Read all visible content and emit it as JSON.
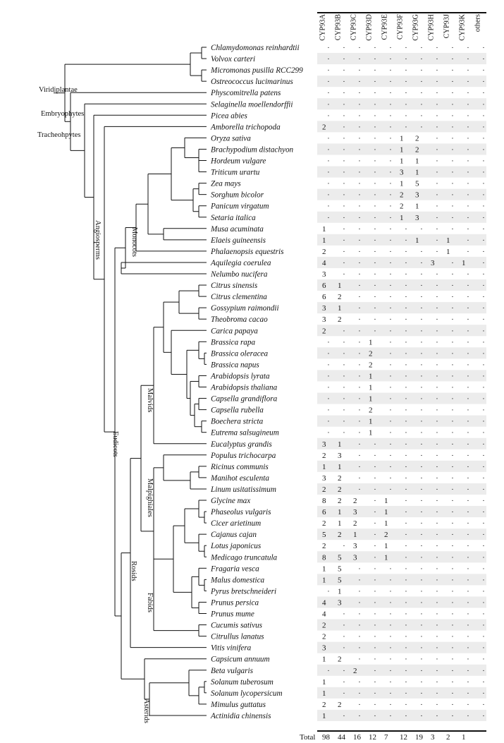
{
  "columns": [
    "CYP93A",
    "CYP93B",
    "CYP93C",
    "CYP93D",
    "CYP93E",
    "CYP93F",
    "CYP93G",
    "CYP93H",
    "CYP93J",
    "CYP93K",
    "others"
  ],
  "species": [
    {
      "name": "Chlamydomonas reinhardtii",
      "counts": [
        null,
        null,
        null,
        null,
        null,
        null,
        null,
        null,
        null,
        null,
        null
      ]
    },
    {
      "name": "Volvox carteri",
      "counts": [
        null,
        null,
        null,
        null,
        null,
        null,
        null,
        null,
        null,
        null,
        null
      ]
    },
    {
      "name": "Micromonas pusilla RCC299",
      "counts": [
        null,
        null,
        null,
        null,
        null,
        null,
        null,
        null,
        null,
        null,
        null
      ]
    },
    {
      "name": "Ostreococcus lucimarinus",
      "counts": [
        null,
        null,
        null,
        null,
        null,
        null,
        null,
        null,
        null,
        null,
        null
      ]
    },
    {
      "name": "Physcomitrella patens",
      "counts": [
        null,
        null,
        null,
        null,
        null,
        null,
        null,
        null,
        null,
        null,
        null
      ]
    },
    {
      "name": "Selaginella moellendorffii",
      "counts": [
        null,
        null,
        null,
        null,
        null,
        null,
        null,
        null,
        null,
        null,
        null
      ]
    },
    {
      "name": "Picea abies",
      "counts": [
        null,
        null,
        null,
        null,
        null,
        null,
        null,
        null,
        null,
        null,
        null
      ]
    },
    {
      "name": "Amborella trichopoda",
      "counts": [
        2,
        null,
        null,
        null,
        null,
        null,
        null,
        null,
        null,
        null,
        null
      ]
    },
    {
      "name": "Oryza sativa",
      "counts": [
        null,
        null,
        null,
        null,
        null,
        1,
        2,
        null,
        null,
        null,
        null
      ]
    },
    {
      "name": "Brachypodium distachyon",
      "counts": [
        null,
        null,
        null,
        null,
        null,
        1,
        2,
        null,
        null,
        null,
        null
      ]
    },
    {
      "name": "Hordeum vulgare",
      "counts": [
        null,
        null,
        null,
        null,
        null,
        1,
        1,
        null,
        null,
        null,
        null
      ]
    },
    {
      "name": "Triticum urartu",
      "counts": [
        null,
        null,
        null,
        null,
        null,
        3,
        1,
        null,
        null,
        null,
        null
      ]
    },
    {
      "name": "Zea mays",
      "counts": [
        null,
        null,
        null,
        null,
        null,
        1,
        5,
        null,
        null,
        null,
        null
      ]
    },
    {
      "name": "Sorghum bicolor",
      "counts": [
        null,
        null,
        null,
        null,
        null,
        2,
        3,
        null,
        null,
        null,
        null
      ]
    },
    {
      "name": "Panicum virgatum",
      "counts": [
        null,
        null,
        null,
        null,
        null,
        2,
        1,
        null,
        null,
        null,
        null
      ]
    },
    {
      "name": "Setaria italica",
      "counts": [
        null,
        null,
        null,
        null,
        null,
        1,
        3,
        null,
        null,
        null,
        null
      ]
    },
    {
      "name": "Musa acuminata",
      "counts": [
        1,
        null,
        null,
        null,
        null,
        null,
        null,
        null,
        null,
        null,
        null
      ]
    },
    {
      "name": "Elaeis guineensis",
      "counts": [
        1,
        null,
        null,
        null,
        null,
        null,
        1,
        null,
        1,
        null,
        null
      ]
    },
    {
      "name": "Phalaenopsis equestris",
      "counts": [
        2,
        null,
        null,
        null,
        null,
        null,
        null,
        null,
        1,
        null,
        null
      ]
    },
    {
      "name": "Aquilegia coerulea",
      "counts": [
        4,
        null,
        null,
        null,
        null,
        null,
        null,
        3,
        null,
        1,
        null
      ]
    },
    {
      "name": "Nelumbo nucifera",
      "counts": [
        3,
        null,
        null,
        null,
        null,
        null,
        null,
        null,
        null,
        null,
        null
      ]
    },
    {
      "name": "Citrus sinensis",
      "counts": [
        6,
        1,
        null,
        null,
        null,
        null,
        null,
        null,
        null,
        null,
        null
      ]
    },
    {
      "name": "Citrus clementina",
      "counts": [
        6,
        2,
        null,
        null,
        null,
        null,
        null,
        null,
        null,
        null,
        null
      ]
    },
    {
      "name": "Gossypium raimondii",
      "counts": [
        3,
        1,
        null,
        null,
        null,
        null,
        null,
        null,
        null,
        null,
        null
      ]
    },
    {
      "name": "Theobroma cacao",
      "counts": [
        3,
        2,
        null,
        null,
        null,
        null,
        null,
        null,
        null,
        null,
        null
      ]
    },
    {
      "name": "Carica papaya",
      "counts": [
        2,
        null,
        null,
        null,
        null,
        null,
        null,
        null,
        null,
        null,
        null
      ]
    },
    {
      "name": "Brassica rapa",
      "counts": [
        null,
        null,
        null,
        1,
        null,
        null,
        null,
        null,
        null,
        null,
        null
      ]
    },
    {
      "name": "Brassica oleracea",
      "counts": [
        null,
        null,
        null,
        2,
        null,
        null,
        null,
        null,
        null,
        null,
        null
      ]
    },
    {
      "name": "Brassica napus",
      "counts": [
        null,
        null,
        null,
        2,
        null,
        null,
        null,
        null,
        null,
        null,
        null
      ]
    },
    {
      "name": "Arabidopsis lyrata",
      "counts": [
        null,
        null,
        null,
        1,
        null,
        null,
        null,
        null,
        null,
        null,
        null
      ]
    },
    {
      "name": "Arabidopsis thaliana",
      "counts": [
        null,
        null,
        null,
        1,
        null,
        null,
        null,
        null,
        null,
        null,
        null
      ]
    },
    {
      "name": "Capsella grandiflora",
      "counts": [
        null,
        null,
        null,
        1,
        null,
        null,
        null,
        null,
        null,
        null,
        null
      ]
    },
    {
      "name": "Capsella rubella",
      "counts": [
        null,
        null,
        null,
        2,
        null,
        null,
        null,
        null,
        null,
        null,
        null
      ]
    },
    {
      "name": "Boechera stricta",
      "counts": [
        null,
        null,
        null,
        1,
        null,
        null,
        null,
        null,
        null,
        null,
        null
      ]
    },
    {
      "name": "Eutrema salsugineum",
      "counts": [
        null,
        null,
        null,
        1,
        null,
        null,
        null,
        null,
        null,
        null,
        null
      ]
    },
    {
      "name": "Eucalyptus grandis",
      "counts": [
        3,
        1,
        null,
        null,
        null,
        null,
        null,
        null,
        null,
        null,
        null
      ]
    },
    {
      "name": "Populus trichocarpa",
      "counts": [
        2,
        3,
        null,
        null,
        null,
        null,
        null,
        null,
        null,
        null,
        null
      ]
    },
    {
      "name": "Ricinus communis",
      "counts": [
        1,
        1,
        null,
        null,
        null,
        null,
        null,
        null,
        null,
        null,
        null
      ]
    },
    {
      "name": "Manihot esculenta",
      "counts": [
        3,
        2,
        null,
        null,
        null,
        null,
        null,
        null,
        null,
        null,
        null
      ]
    },
    {
      "name": "Linum usitatissimum",
      "counts": [
        2,
        2,
        null,
        null,
        null,
        null,
        null,
        null,
        null,
        null,
        null
      ]
    },
    {
      "name": "Glycine max",
      "counts": [
        8,
        2,
        2,
        null,
        1,
        null,
        null,
        null,
        null,
        null,
        null
      ]
    },
    {
      "name": "Phaseolus vulgaris",
      "counts": [
        6,
        1,
        3,
        null,
        1,
        null,
        null,
        null,
        null,
        null,
        null
      ]
    },
    {
      "name": "Cicer arietinum",
      "counts": [
        2,
        1,
        2,
        null,
        1,
        null,
        null,
        null,
        null,
        null,
        null
      ]
    },
    {
      "name": "Cajanus cajan",
      "counts": [
        5,
        2,
        1,
        null,
        2,
        null,
        null,
        null,
        null,
        null,
        null
      ]
    },
    {
      "name": "Lotus japonicus",
      "counts": [
        2,
        null,
        3,
        null,
        1,
        null,
        null,
        null,
        null,
        null,
        null
      ]
    },
    {
      "name": "Medicago truncatula",
      "counts": [
        8,
        5,
        3,
        null,
        1,
        null,
        null,
        null,
        null,
        null,
        null
      ]
    },
    {
      "name": "Fragaria vesca",
      "counts": [
        1,
        5,
        null,
        null,
        null,
        null,
        null,
        null,
        null,
        null,
        null
      ]
    },
    {
      "name": "Malus domestica",
      "counts": [
        1,
        5,
        null,
        null,
        null,
        null,
        null,
        null,
        null,
        null,
        null
      ]
    },
    {
      "name": "Pyrus bretschneideri",
      "counts": [
        null,
        1,
        null,
        null,
        null,
        null,
        null,
        null,
        null,
        null,
        null
      ]
    },
    {
      "name": "Prunus persica",
      "counts": [
        4,
        3,
        null,
        null,
        null,
        null,
        null,
        null,
        null,
        null,
        null
      ]
    },
    {
      "name": "Prunus mume",
      "counts": [
        4,
        null,
        null,
        null,
        null,
        null,
        null,
        null,
        null,
        null,
        null
      ]
    },
    {
      "name": "Cucumis sativus",
      "counts": [
        2,
        null,
        null,
        null,
        null,
        null,
        null,
        null,
        null,
        null,
        null
      ]
    },
    {
      "name": "Citrullus lanatus",
      "counts": [
        2,
        null,
        null,
        null,
        null,
        null,
        null,
        null,
        null,
        null,
        null
      ]
    },
    {
      "name": "Vitis vinifera",
      "counts": [
        3,
        null,
        null,
        null,
        null,
        null,
        null,
        null,
        null,
        null,
        null
      ]
    },
    {
      "name": "Capsicum annuum",
      "counts": [
        1,
        2,
        null,
        null,
        null,
        null,
        null,
        null,
        null,
        null,
        null
      ]
    },
    {
      "name": "Beta vulgaris",
      "counts": [
        null,
        null,
        2,
        null,
        null,
        null,
        null,
        null,
        null,
        null,
        null
      ]
    },
    {
      "name": "Solanum tuberosum",
      "counts": [
        1,
        null,
        null,
        null,
        null,
        null,
        null,
        null,
        null,
        null,
        null
      ]
    },
    {
      "name": "Solanum lycopersicum",
      "counts": [
        1,
        null,
        null,
        null,
        null,
        null,
        null,
        null,
        null,
        null,
        null
      ]
    },
    {
      "name": "Mimulus guttatus",
      "counts": [
        2,
        2,
        null,
        null,
        null,
        null,
        null,
        null,
        null,
        null,
        null
      ]
    },
    {
      "name": "Actinidia chinensis",
      "counts": [
        1,
        null,
        null,
        null,
        null,
        null,
        null,
        null,
        null,
        null,
        null
      ]
    }
  ],
  "totals": {
    "label": "Total",
    "values": [
      98,
      44,
      16,
      12,
      7,
      12,
      19,
      3,
      2,
      1
    ]
  },
  "clades": {
    "viridiplantae": "Viridiplantae",
    "embryophytes": "Embryophytes",
    "tracheophytes": "Tracheohpytes",
    "angiosperms": "Angiosperms",
    "monocots": "Monocots",
    "eudicots": "Eudicots",
    "malvids": "Malvids",
    "malpighiales": "Malpighiales",
    "rosids": "Rosids",
    "fabids": "Fabids",
    "asterids": "Asterids"
  },
  "colors": {
    "stripe": "#ececec",
    "ink": "#111111"
  }
}
